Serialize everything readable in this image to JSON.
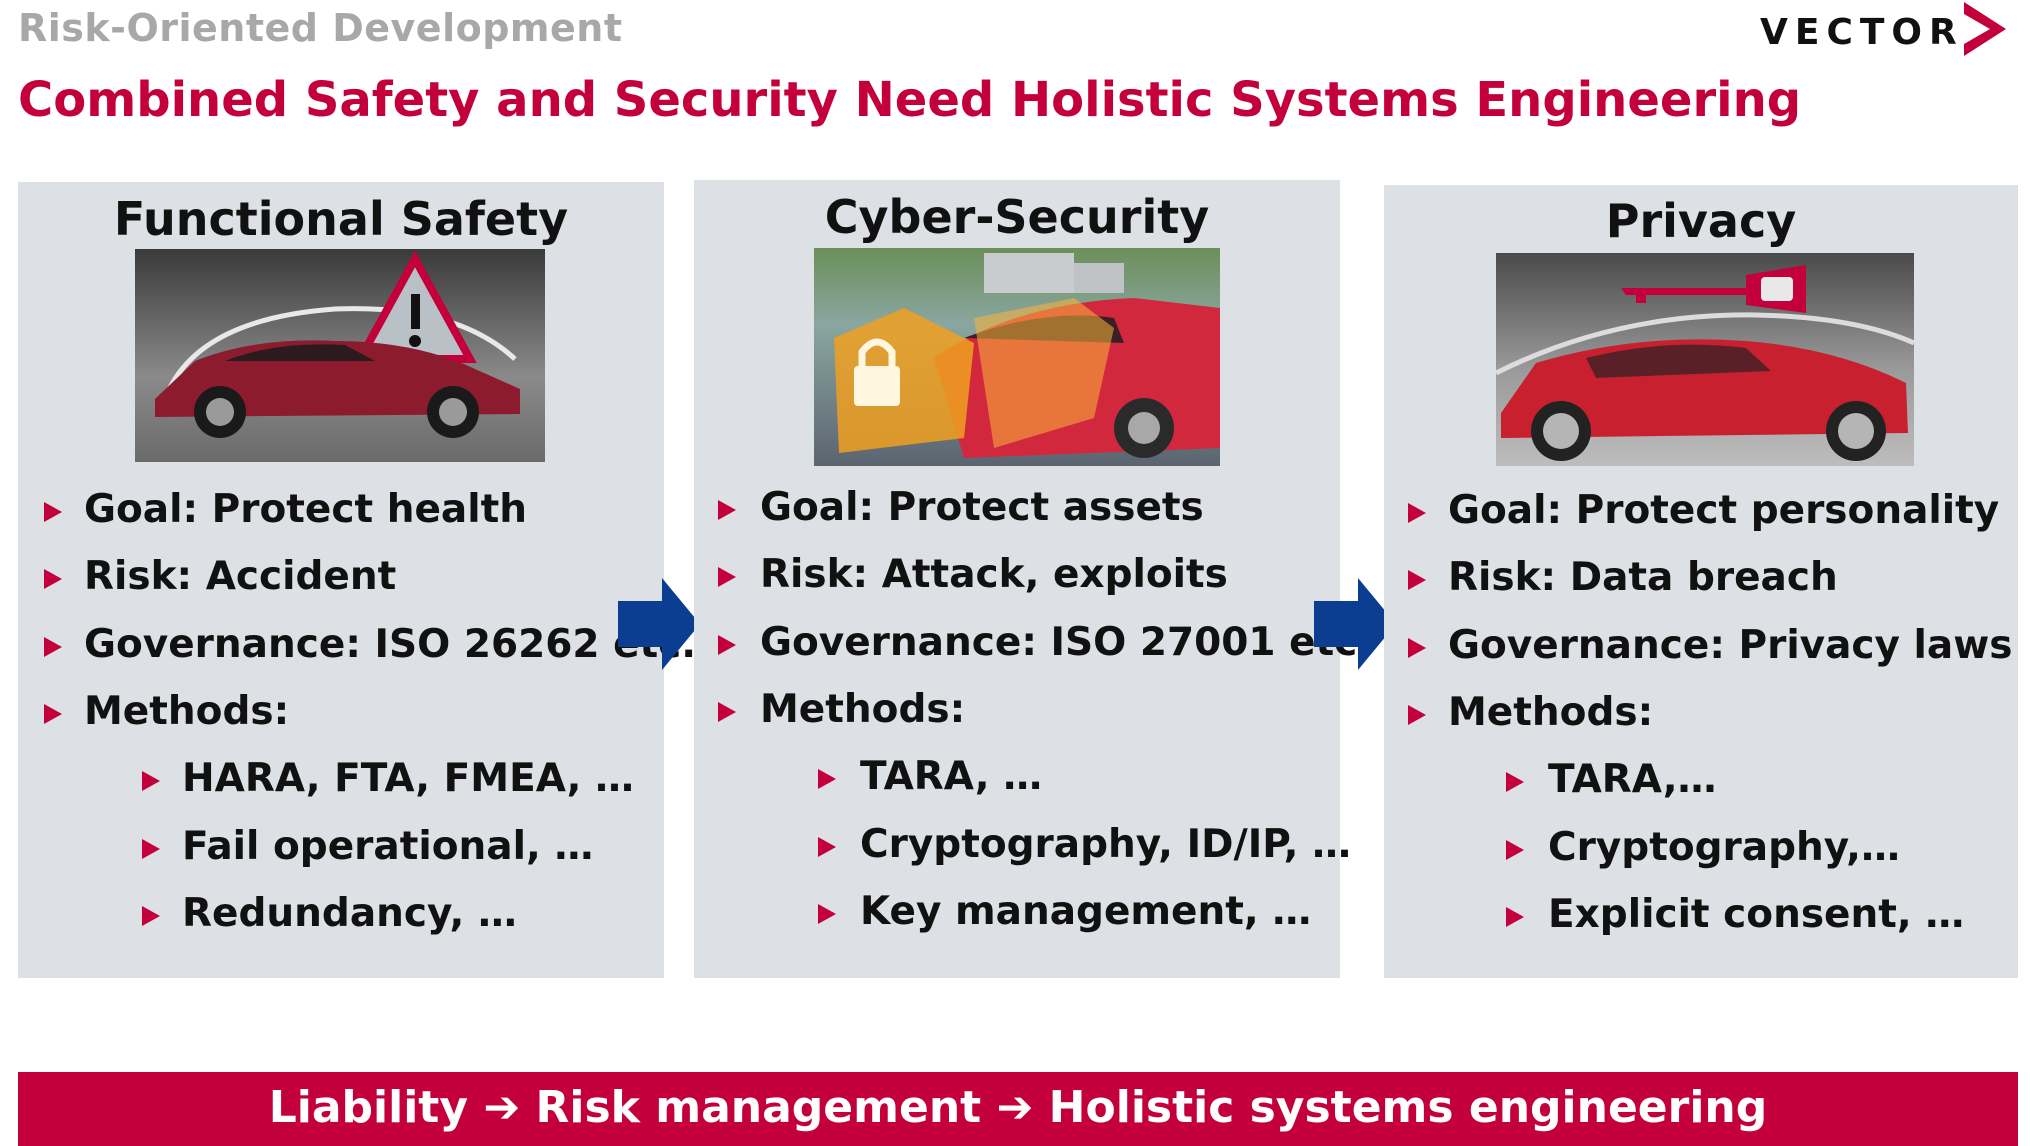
{
  "header": {
    "section": "Risk-Oriented Development",
    "title": "Combined Safety and Security Need Holistic Systems Engineering",
    "logo": "VECTOR"
  },
  "colors": {
    "accent": "#c4003c",
    "panel": "#dde0e4",
    "arrow": "#0b3d91"
  },
  "panels": [
    {
      "title": "Functional Safety",
      "image": "car-warning-triangle-image",
      "goal": "Goal: Protect health",
      "risk": "Risk: Accident",
      "governance": "Governance: ISO 26262 etc.",
      "methods": "Methods:",
      "sub": [
        "HARA, FTA, FMEA, …",
        "Fail operational, …",
        "Redundancy, …"
      ]
    },
    {
      "title": "Cyber-Security",
      "image": "car-padlock-image",
      "goal": "Goal: Protect assets",
      "risk": "Risk: Attack, exploits",
      "governance": "Governance: ISO 27001 etc.",
      "methods": "Methods:",
      "sub": [
        "TARA, …",
        "Cryptography, ID/IP, …",
        "Key management, …"
      ]
    },
    {
      "title": "Privacy",
      "image": "car-key-image",
      "goal": "Goal: Protect personality",
      "risk": "Risk: Data breach",
      "governance": "Governance: Privacy laws",
      "methods": "Methods:",
      "sub": [
        "TARA,…",
        "Cryptography,…",
        "Explicit consent, …"
      ]
    }
  ],
  "banner": {
    "text": "Liability ➔ Risk management ➔ Holistic systems engineering"
  }
}
